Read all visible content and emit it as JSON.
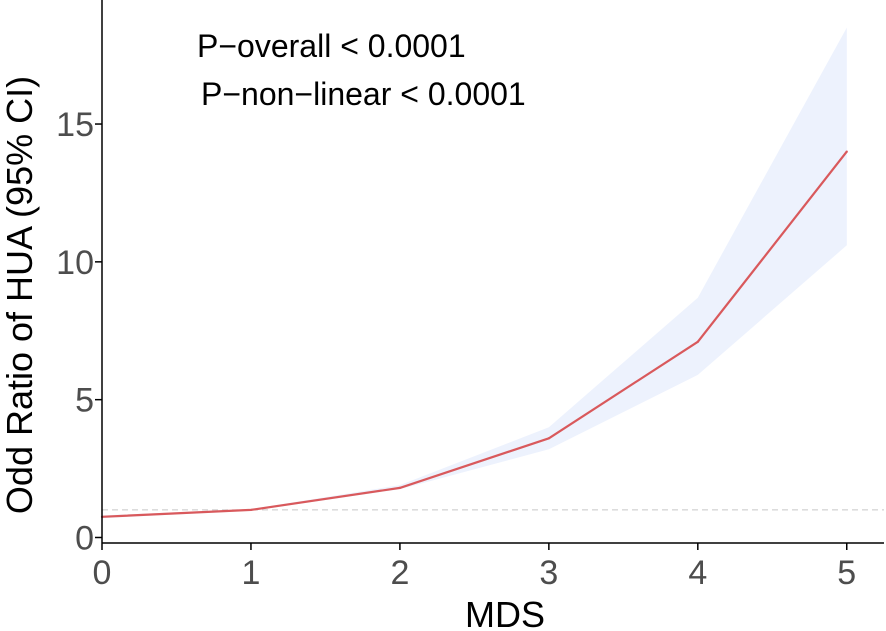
{
  "chart_data": {
    "type": "line",
    "x": [
      0,
      1,
      2,
      3,
      4,
      5
    ],
    "series": [
      {
        "values": [
          0.75,
          1.0,
          1.8,
          3.6,
          7.1,
          14.0
        ],
        "ci_lower": [
          0.7,
          0.97,
          1.75,
          3.2,
          5.9,
          10.6
        ],
        "ci_upper": [
          0.8,
          1.03,
          1.9,
          4.0,
          8.7,
          18.5
        ]
      }
    ],
    "reference_y": 1,
    "xlim": [
      0,
      5.25
    ],
    "ylim": [
      -0.2,
      19.5
    ],
    "xticks": [
      "0",
      "1",
      "2",
      "3",
      "4",
      "5"
    ],
    "yticks": [
      "0",
      "5",
      "10",
      "15"
    ],
    "xlabel": "MDS",
    "ylabel": "Odd Ratio of HUA (95% CI)",
    "annotations": [
      "P−overall < 0.0001",
      "P−non−linear < 0.0001"
    ],
    "colors": {
      "line": "#d9595c",
      "band": "#edf2fd",
      "reference": "#c8c8c8",
      "axis": "#000000"
    },
    "grid": false
  }
}
